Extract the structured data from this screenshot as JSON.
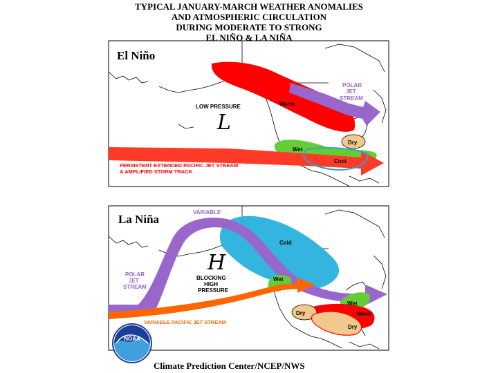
{
  "title": {
    "line1": "TYPICAL JANUARY-MARCH WEATHER ANOMALIES",
    "line2": "AND ATMOSPHERIC CIRCULATION",
    "line3": "DURING MODERATE TO STRONG",
    "line4": "EL NIÑO & LA NIÑA"
  },
  "el_nino": {
    "panel_label": "El Niño",
    "low_pressure": "LOW PRESSURE",
    "low_symbol": "L",
    "warm": "Warm",
    "dry": "Dry",
    "wet": "Wet",
    "cool": "Cool",
    "polar_jet_1": "POLAR",
    "polar_jet_2": "JET",
    "polar_jet_3": "STREAM",
    "pacific_jet_1": "PERSISTENT EXTENDED PACIFIC JET STREAM",
    "pacific_jet_2": "& AMPLIFIED STORM TRACK"
  },
  "la_nina": {
    "panel_label": "La Niña",
    "variable": "VARIABLE",
    "cold": "Cold",
    "high_symbol": "H",
    "blocking_1": "BLOCKING",
    "blocking_2": "HIGH",
    "blocking_3": "PRESSURE",
    "polar_jet_1": "POLAR",
    "polar_jet_2": "JET",
    "polar_jet_3": "STREAM",
    "wet_west": "Wet",
    "wet_east": "Wet",
    "warm": "Warm",
    "dry_west": "Dry",
    "dry_east": "Dry",
    "pacific_jet": "VARIABLE PACIFIC JET STREAM"
  },
  "logo": {
    "text": "NOAA"
  },
  "credit": "Climate Prediction Center/NCEP/NWS",
  "colors": {
    "warm_red": "#ff0000",
    "polar_jet_purple": "#9966cc",
    "wet_green": "#66cc33",
    "dry_tan": "#f2c98c",
    "cold_cyan": "#33b5e0",
    "pacific_jet_orange": "#ff6600",
    "label_purple": "#9966cc",
    "label_red": "#ff0000",
    "label_orange": "#ff6600",
    "noaa_blue": "#1a3f9a"
  }
}
